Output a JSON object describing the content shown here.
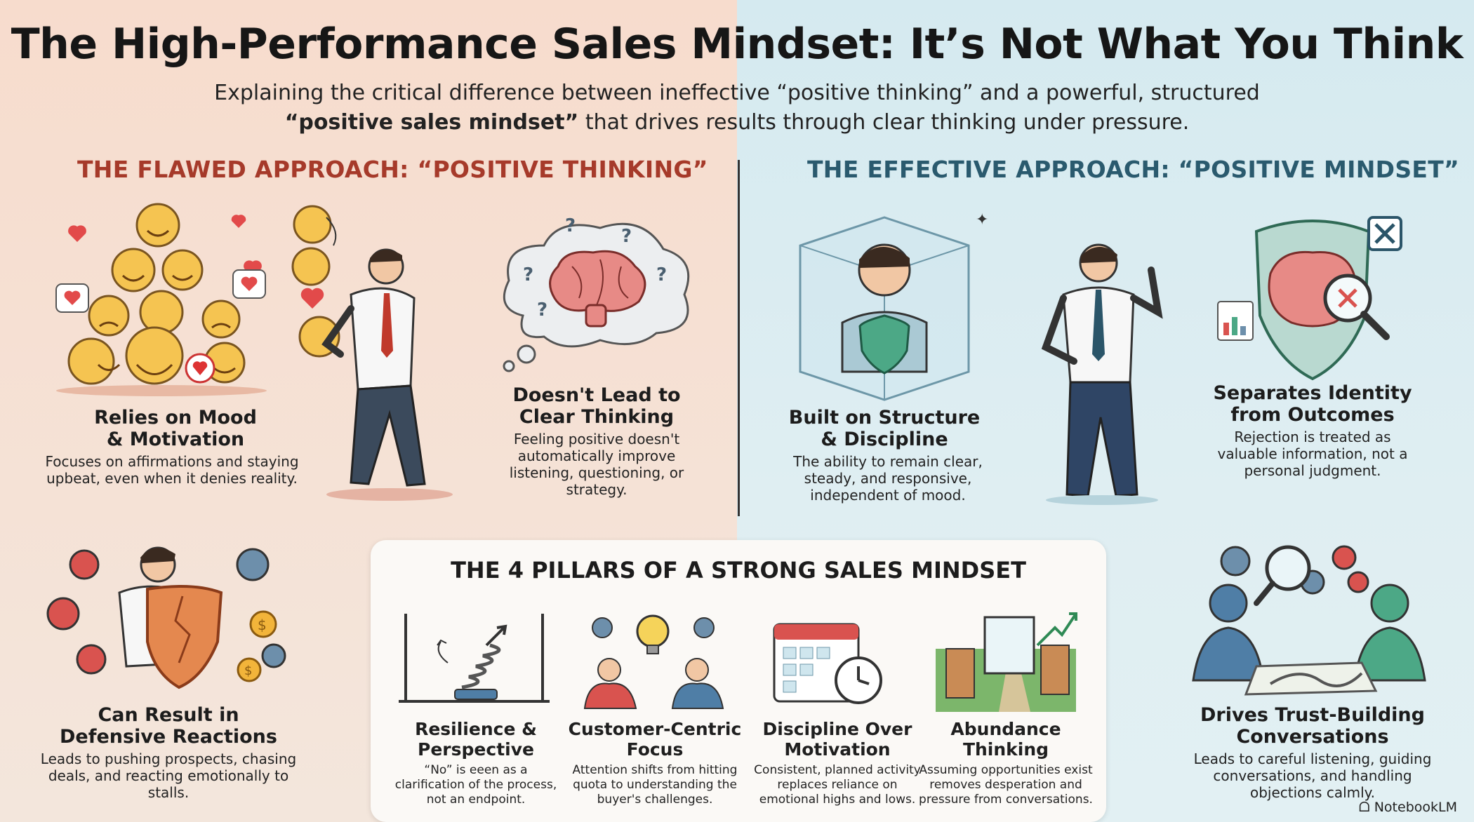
{
  "header": {
    "title": "The High-Performance Sales Mindset: It’s Not What You Think",
    "subtitle_line1": "Explaining the critical difference between ineffective “positive thinking” and a powerful, structured",
    "subtitle_bold": "“positive sales mindset”",
    "subtitle_line2_rest": " that drives results through clear thinking under pressure."
  },
  "left_section": {
    "heading": "THE FLAWED APPROACH: “POSITIVE THINKING”",
    "cards": [
      {
        "title": "Relies on Mood\n& Motivation",
        "body": "Focuses on affirmations and staying upbeat, even when it denies reality."
      },
      {
        "title": "Doesn't Lead to\nClear Thinking",
        "body": "Feeling positive doesn't automatically improve listening, questioning, or strategy."
      },
      {
        "title": "Can Result in\nDefensive Reactions",
        "body": "Leads to pushing prospects, chasing deals, and reacting emotionally to stalls."
      }
    ]
  },
  "right_section": {
    "heading": "THE EFFECTIVE APPROACH: “POSITIVE MINDSET”",
    "cards": [
      {
        "title": "Built on Structure\n& Discipline",
        "body": "The ability to remain clear, steady, and responsive, independent of mood."
      },
      {
        "title": "Separates Identity\nfrom Outcomes",
        "body": "Rejection is treated as valuable information, not a personal judgment."
      },
      {
        "title": "Drives Trust-Building\nConversations",
        "body": "Leads to careful listening, guiding conversations, and handling objections calmly."
      }
    ]
  },
  "pillars": {
    "title": "THE 4 PILLARS OF A STRONG SALES MINDSET",
    "items": [
      {
        "title": "Resilience &\nPerspective",
        "body": "“No” is eeen as a clarification of the process, not an endpoint."
      },
      {
        "title": "Customer-Centric\nFocus",
        "body": "Attention shifts from hitting quota to understanding the buyer's challenges."
      },
      {
        "title": "Discipline Over\nMotivation",
        "body": "Consistent, planned activity replaces reliance on emotional highs and lows."
      },
      {
        "title": "Abundance\nThinking",
        "body": "Assuming opportunities exist removes desperation and pressure from conversations."
      }
    ]
  },
  "brand": "NotebookLM",
  "colors": {
    "left_accent": "#a63a2a",
    "right_accent": "#2a5a6e",
    "left_bg": "#f7dccd",
    "right_bg": "#d5eaf0"
  }
}
